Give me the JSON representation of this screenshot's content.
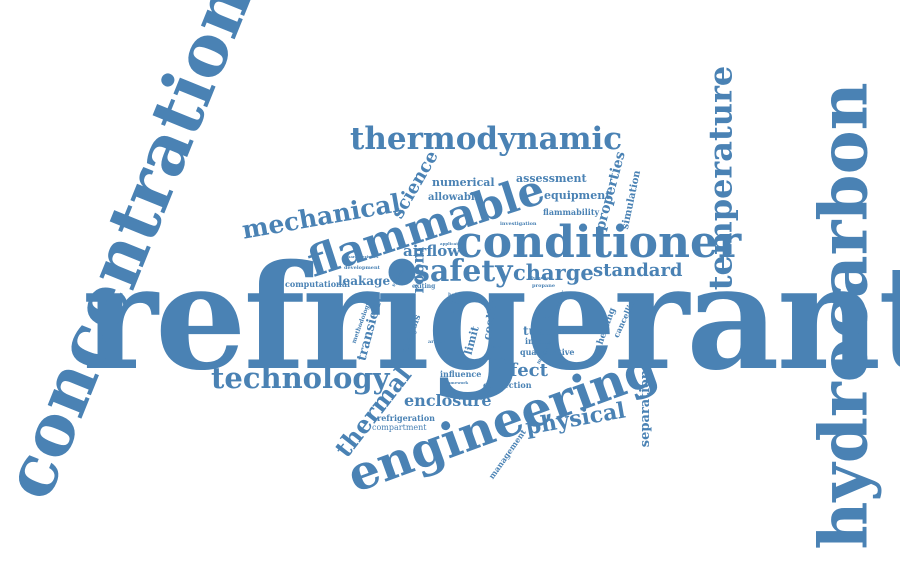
{
  "palette": {
    "word": "#4a82b4",
    "background": "#ffffff"
  },
  "words": {
    "refrigerant": "refrigerant",
    "concentration": "concentration",
    "hydrocarbon": "hydrocarbon",
    "engineering": "engineering",
    "conditioner": "conditioner",
    "flammable": "flammable",
    "thermodynamic": "thermodynamic",
    "temperature": "temperature",
    "technology": "technology",
    "mechanical": "mechanical",
    "safety": "safety",
    "charge": "charge",
    "standard": "standard",
    "physical": "physical",
    "thermal": "thermal",
    "enclosure": "enclosure",
    "effect": "effect",
    "science": "science",
    "room": "room",
    "airflow": "airflow",
    "properties": "properties",
    "separation": "separation",
    "numerical": "numerical",
    "assessment": "assessment",
    "equipment": "equipment",
    "allowable": "allowable",
    "flammability": "flammability",
    "simulation": "simulation",
    "leakage": "leakage",
    "computational": "computational",
    "transient": "transient",
    "limit": "limit",
    "cooling": "cooling",
    "analysis": "analysis",
    "tube": "tube",
    "indoor": "indoor",
    "quantitative": "quantitative",
    "heating": "heating",
    "cancelling": "cancelling",
    "influence": "influence",
    "convection": "convection",
    "refrigeration": "refrigeration",
    "compartment": "compartment",
    "management": "management",
    "methodology": "methodology",
    "investigation": "investigation",
    "propane": "propane",
    "exiting": "exiting",
    "development": "development",
    "system": "system",
    "natural": "natural",
    "r134a": "r134a",
    "framework": "framework",
    "minimum": "minimum",
    "characteristics": "characteristics",
    "application": "application",
    "dynamic": "dynamic",
    "leak": "leak",
    "unit": "unit",
    "hole": "hole",
    "behavior": "behavior",
    "arising": "arising",
    "flow": "flow"
  }
}
